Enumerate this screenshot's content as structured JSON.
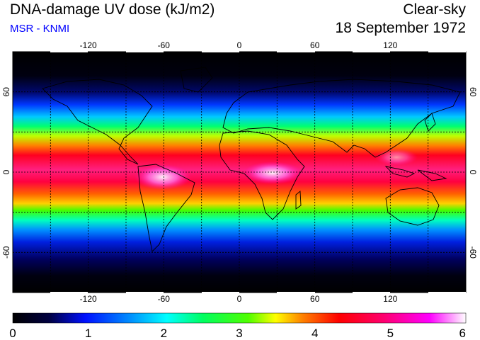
{
  "header": {
    "title": "DNA-damage UV dose (kJ/m2)",
    "subtitle": "MSR - KNMI",
    "sky": "Clear-sky",
    "date": "18 September 1972"
  },
  "map": {
    "lon_ticks": [
      -120,
      -60,
      0,
      60,
      120
    ],
    "lat_ticks": [
      60,
      0,
      -60
    ],
    "lon_range": [
      -180,
      180
    ],
    "lat_range": [
      -90,
      90
    ],
    "grid": true
  },
  "colorbar": {
    "ticks": [
      "0",
      "1",
      "2",
      "3",
      "4",
      "5",
      "6"
    ],
    "range": [
      0,
      6
    ]
  }
}
